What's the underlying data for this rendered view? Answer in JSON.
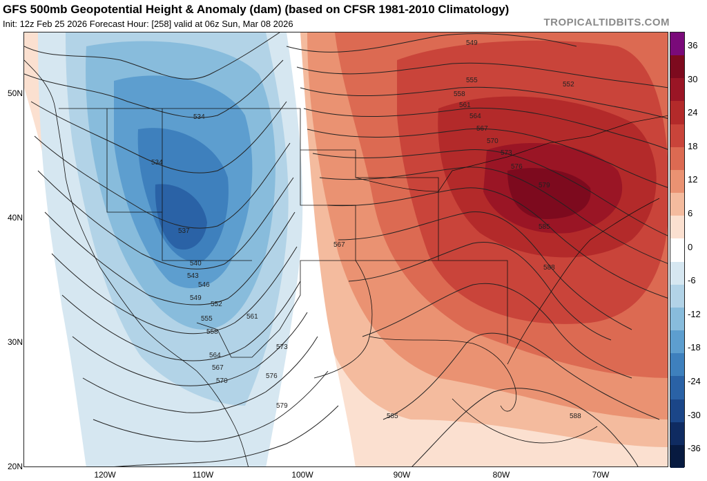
{
  "header": {
    "title": "GFS 500mb Geopotential Height & Anomaly (dam) (based on CFSR 1981-2010 Climatology)",
    "subtitle": "Init: 12z Feb 25 2026   Forecast Hour: [258]   valid at 06z Sun, Mar 08 2026",
    "brand": "TROPICALTIDBITS.COM"
  },
  "axes": {
    "lat_labels": [
      "50N",
      "40N",
      "30N",
      "20N"
    ],
    "lon_labels": [
      "120W",
      "110W",
      "100W",
      "90W",
      "80W",
      "70W"
    ]
  },
  "colorbar": {
    "labels": [
      "36",
      "30",
      "24",
      "18",
      "12",
      "6",
      "0",
      "-6",
      "-12",
      "-18",
      "-24",
      "-30",
      "-36"
    ],
    "colors": [
      "#7a0a7a",
      "#7d0a1e",
      "#9a1525",
      "#b32a2a",
      "#c9443a",
      "#dc6a52",
      "#ea9272",
      "#f4bb9e",
      "#fbe0d0",
      "#ffffff",
      "#d6e7f1",
      "#b2d3e7",
      "#88bcdc",
      "#5d9ecf",
      "#3e80bd",
      "#2a62a6",
      "#1b4688",
      "#0f2b61",
      "#071a40"
    ]
  },
  "contour_labels": [
    "549",
    "552",
    "555",
    "558",
    "561",
    "564",
    "567",
    "570",
    "573",
    "576",
    "579",
    "585",
    "588",
    "534",
    "534",
    "537",
    "540",
    "543",
    "546",
    "549",
    "552",
    "555",
    "558",
    "561",
    "564",
    "567",
    "570",
    "567",
    "573",
    "576",
    "579",
    "585",
    "588"
  ]
}
